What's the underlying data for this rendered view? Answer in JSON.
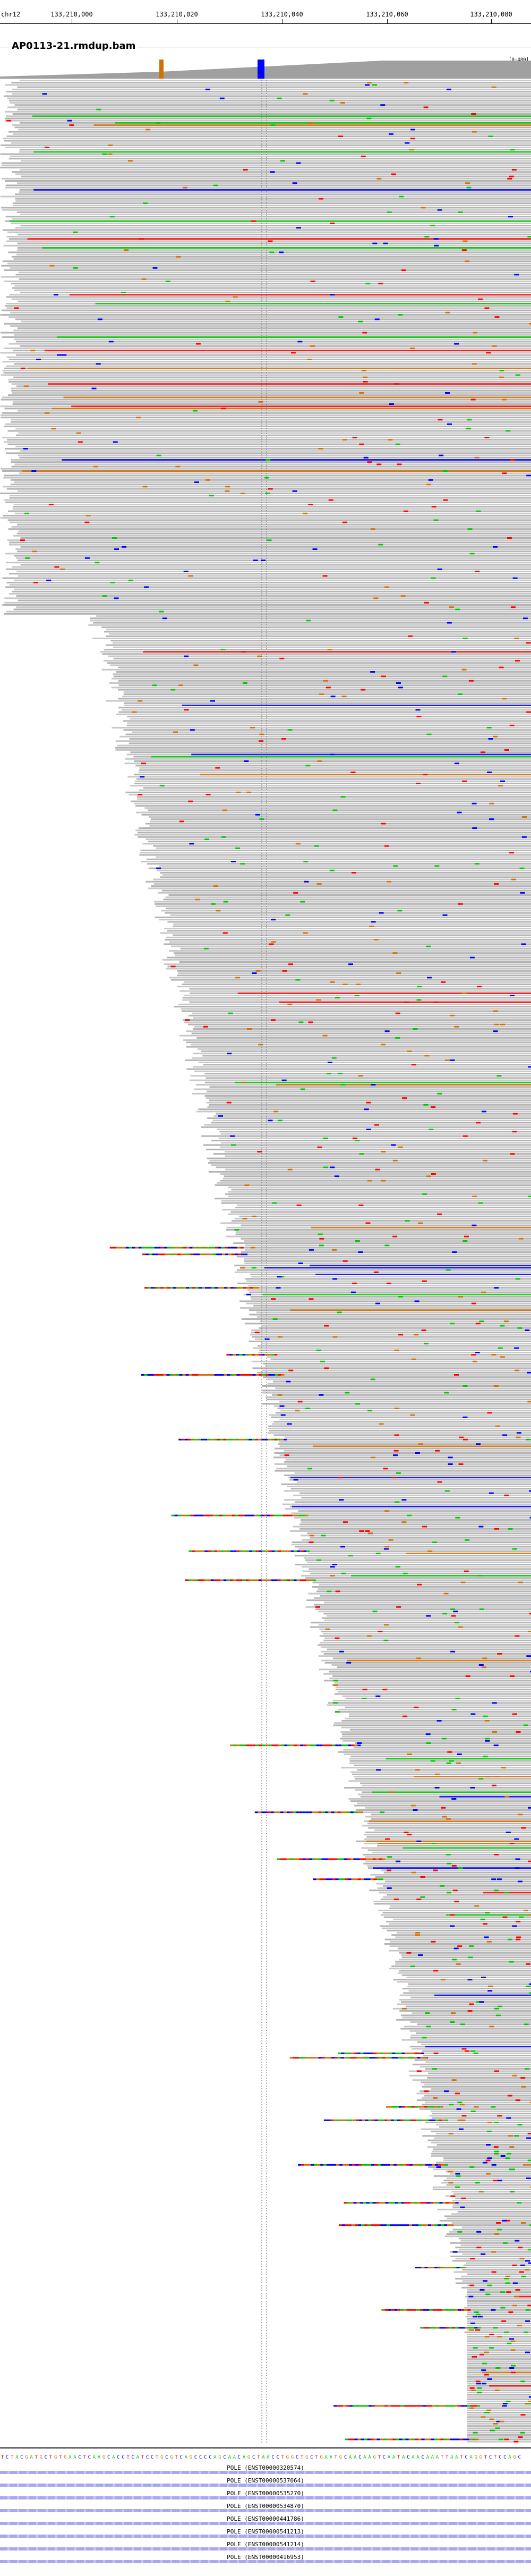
{
  "ruler": {
    "chromosome": "chr12",
    "ticks": [
      "133,210,000",
      "133,210,020",
      "133,210,040",
      "133,210,060",
      "133,210,080"
    ]
  },
  "track": {
    "title": "AP0113-21.rmdup.bam",
    "coverage_scale": "[0-480]"
  },
  "colors": {
    "read": "#b4b4b4",
    "read_alt": "#c8c8c8",
    "mismatch_A": "#00c800",
    "mismatch_C": "#0000ff",
    "mismatch_G": "#d17105",
    "mismatch_T": "#ff0000",
    "coverage": "#a0a0a0",
    "feature": "#a8a8f0"
  },
  "reference_sequence": "TCTACGATGCTGTGAACTCAAGCACCTCATCCTGCGTCAGCCCCAGCAACAGCTAACCTGGCTGCTGAATGCAACAAGTCAATACAACAAATTAATCAGGTCTCCAGC",
  "features": [
    {
      "label": "POLE (ENST00000320574)"
    },
    {
      "label": "POLE (ENST00000537064)"
    },
    {
      "label": "POLE (ENST00000535270)"
    },
    {
      "label": "POLE (ENST00000534870)"
    },
    {
      "label": "POLE (ENST00000441786)"
    },
    {
      "label": "POLE (ENST00000541213)"
    },
    {
      "label": "POLE (ENST00000541214)"
    },
    {
      "label": "POLE (ENST00000416953)"
    }
  ]
}
